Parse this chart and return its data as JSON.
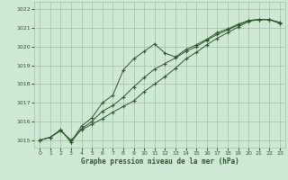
{
  "xlabel": "Graphe pression niveau de la mer (hPa)",
  "bg_color": "#cfe8d4",
  "grid_color": "#a0bfa8",
  "line_color": "#2d5a2d",
  "ylim": [
    1014.6,
    1022.4
  ],
  "xlim": [
    -0.5,
    23.5
  ],
  "yticks": [
    1015,
    1016,
    1017,
    1018,
    1019,
    1020,
    1021,
    1022
  ],
  "xticks": [
    0,
    1,
    2,
    3,
    4,
    5,
    6,
    7,
    8,
    9,
    10,
    11,
    12,
    13,
    14,
    15,
    16,
    17,
    18,
    19,
    20,
    21,
    22,
    23
  ],
  "line1_x": [
    0,
    1,
    2,
    3,
    4,
    5,
    6,
    7,
    8,
    9,
    10,
    11,
    12,
    13,
    14,
    15,
    16,
    17,
    18,
    19,
    20,
    21,
    22,
    23
  ],
  "line1_y": [
    1015.0,
    1015.15,
    1015.55,
    1014.9,
    1015.75,
    1016.2,
    1017.0,
    1017.4,
    1018.75,
    1019.35,
    1019.75,
    1020.15,
    1019.65,
    1019.45,
    1019.85,
    1020.1,
    1020.4,
    1020.75,
    1020.95,
    1021.2,
    1021.4,
    1021.45,
    1021.45,
    1021.3
  ],
  "line2_x": [
    0,
    1,
    2,
    3,
    4,
    5,
    6,
    7,
    8,
    9,
    10,
    11,
    12,
    13,
    14,
    15,
    16,
    17,
    18,
    19,
    20,
    21,
    22,
    23
  ],
  "line2_y": [
    1015.0,
    1015.15,
    1015.55,
    1014.9,
    1015.6,
    1016.0,
    1016.55,
    1016.85,
    1017.3,
    1017.85,
    1018.35,
    1018.8,
    1019.1,
    1019.4,
    1019.75,
    1020.0,
    1020.35,
    1020.65,
    1020.9,
    1021.15,
    1021.4,
    1021.45,
    1021.45,
    1021.25
  ],
  "line3_x": [
    0,
    1,
    2,
    3,
    4,
    5,
    6,
    7,
    8,
    9,
    10,
    11,
    12,
    13,
    14,
    15,
    16,
    17,
    18,
    19,
    20,
    21,
    22,
    23
  ],
  "line3_y": [
    1015.0,
    1015.15,
    1015.5,
    1015.0,
    1015.55,
    1015.85,
    1016.15,
    1016.5,
    1016.8,
    1017.1,
    1017.6,
    1018.0,
    1018.4,
    1018.85,
    1019.35,
    1019.7,
    1020.1,
    1020.45,
    1020.75,
    1021.05,
    1021.35,
    1021.45,
    1021.45,
    1021.25
  ]
}
